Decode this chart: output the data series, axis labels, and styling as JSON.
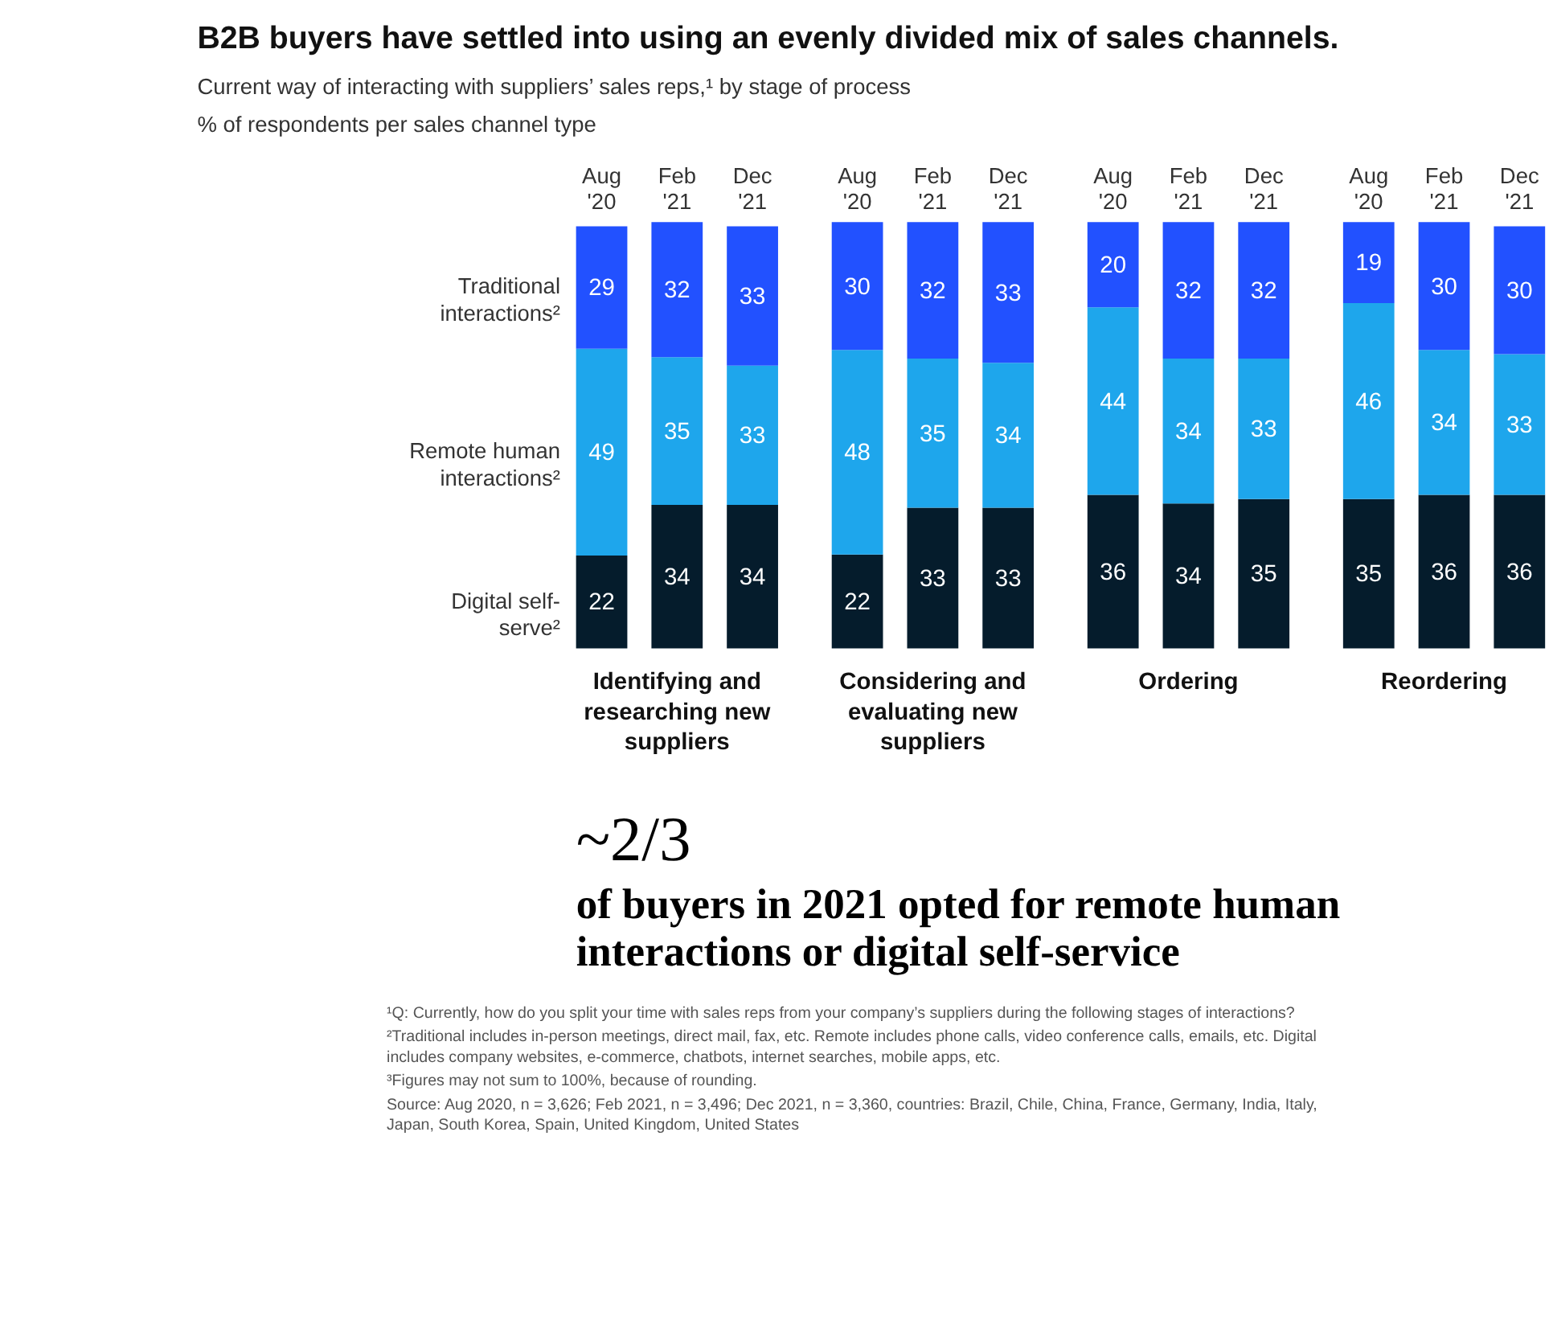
{
  "chart_data": [
    {
      "type": "bar",
      "stacked": true,
      "data_labels": true,
      "tick_labels": "x",
      "title": "B2B buyers have settled into using an evenly divided mix of sales channels.",
      "subtitle": "Current way of interacting with suppliers’ sales reps,¹ by stage of process",
      "ylabel": "% of respondents per sales channel type",
      "xlabel": "Identifying and researching new suppliers",
      "categories": [
        "Aug '20",
        "Feb '21",
        "Dec '21"
      ],
      "series": [
        {
          "name": "Digital self-serve²",
          "color": "#051c2c",
          "values": [
            22,
            34,
            34
          ]
        },
        {
          "name": "Remote human interactions²",
          "color": "#1ea6ec",
          "values": [
            49,
            35,
            33
          ]
        },
        {
          "name": "Traditional interactions²",
          "color": "#2251ff",
          "values": [
            29,
            32,
            33
          ]
        }
      ],
      "annotations": [
        "~2/3",
        "of buyers in 2021 opted for remote human interactions or digital self-service",
        "¹Q: Currently, how do you split your time with sales reps from your company’s suppliers during the following stages of interactions?",
        "²Traditional includes in-person meetings, direct mail, fax, etc. Remote includes phone calls, video conference calls, emails, etc. Digital includes company websites, e-commerce, chatbots, internet searches, mobile apps, etc.",
        "³Figures may not sum to 100%, because of rounding.",
        "Source: Aug 2020, n = 3,626; Feb 2021, n = 3,496; Dec 2021, n = 3,360, countries: Brazil, Chile, China, France, Germany, India, Italy, Japan, South Korea, Spain, United Kingdom, United States"
      ]
    },
    {
      "type": "bar",
      "stacked": true,
      "data_labels": true,
      "tick_labels": "x",
      "xlabel": "Considering and evaluating new suppliers",
      "categories": [
        "Aug '20",
        "Feb '21",
        "Dec '21"
      ],
      "series": [
        {
          "color": "#051c2c",
          "values": [
            22,
            33,
            33
          ]
        },
        {
          "color": "#1ea6ec",
          "values": [
            48,
            35,
            34
          ]
        },
        {
          "color": "#2251ff",
          "values": [
            30,
            32,
            33
          ]
        }
      ]
    },
    {
      "type": "bar",
      "stacked": true,
      "data_labels": true,
      "tick_labels": "x",
      "xlabel": "Ordering",
      "categories": [
        "Aug '20",
        "Feb '21",
        "Dec '21"
      ],
      "series": [
        {
          "color": "#051c2c",
          "values": [
            36,
            34,
            35
          ]
        },
        {
          "color": "#1ea6ec",
          "values": [
            44,
            34,
            33
          ]
        },
        {
          "color": "#2251ff",
          "values": [
            20,
            32,
            32
          ]
        }
      ]
    },
    {
      "type": "bar",
      "stacked": true,
      "data_labels": true,
      "tick_labels": "x",
      "xlabel": "Reordering",
      "categories": [
        "Aug '20",
        "Feb '21",
        "Dec '21"
      ],
      "series": [
        {
          "color": "#051c2c",
          "values": [
            35,
            36,
            36
          ]
        },
        {
          "color": "#1ea6ec",
          "values": [
            46,
            34,
            33
          ]
        },
        {
          "color": "#2251ff",
          "values": [
            19,
            30,
            30
          ]
        }
      ]
    }
  ]
}
